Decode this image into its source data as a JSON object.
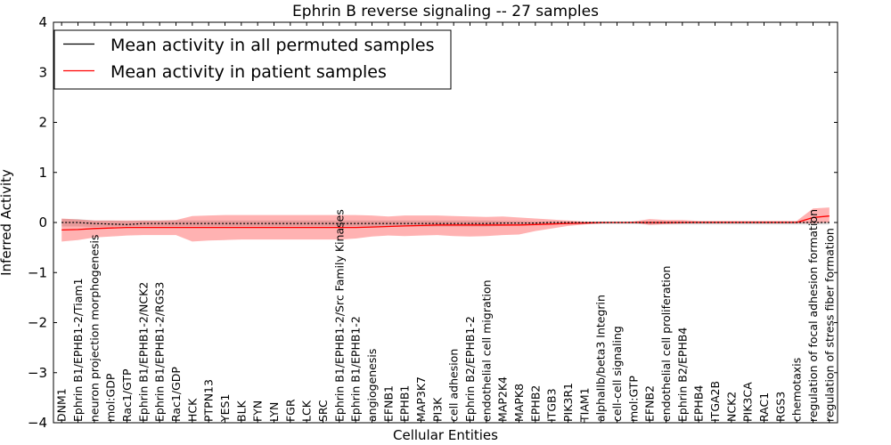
{
  "chart_data": {
    "type": "line",
    "title": "Ephrin B reverse signaling -- 27 samples",
    "xlabel": "Cellular Entities",
    "ylabel": "Inferred Activity",
    "ylim": [
      -4,
      4
    ],
    "yticks": [
      -4,
      -3,
      -2,
      -1,
      0,
      1,
      2,
      3,
      4
    ],
    "legend_position": "top-left",
    "categories": [
      "DNM1",
      "Ephrin B1/EPHB1-2/Tiam1",
      "neuron projection morphogenesis",
      "mol:GDP",
      "Rac1/GTP",
      "Ephrin B1/EPHB1-2/NCK2",
      "Ephrin B1/EPHB1-2/RGS3",
      "Rac1/GDP",
      "HCK",
      "PTPN13",
      "YES1",
      "BLK",
      "FYN",
      "LYN",
      "FGR",
      "LCK",
      "SRC",
      "Ephrin B1/EPHB1-2/Src Family Kinases",
      "Ephrin B1/EPHB1-2",
      "angiogenesis",
      "EFNB1",
      "EPHB1",
      "MAP3K7",
      "PI3K",
      "cell adhesion",
      "Ephrin B2/EPHB1-2",
      "endothelial cell migration",
      "MAP2K4",
      "MAPK8",
      "EPHB2",
      "ITGB3",
      "PIK3R1",
      "TIAM1",
      "alphaIIb/beta3 Integrin",
      "cell-cell signaling",
      "mol:GTP",
      "EFNB2",
      "endothelial cell proliferation",
      "Ephrin B2/EPHB4",
      "EPHB4",
      "ITGA2B",
      "NCK2",
      "PIK3CA",
      "RAC1",
      "RGS3",
      "chemotaxis",
      "regulation of focal adhesion formation",
      "regulation of stress fiber formation"
    ],
    "series": [
      {
        "name": "Mean activity in all permuted samples",
        "color": "#000000",
        "style": "dashed",
        "values": [
          0.0,
          0.0,
          -0.02,
          -0.03,
          -0.04,
          -0.02,
          -0.02,
          -0.02,
          -0.02,
          -0.02,
          -0.02,
          -0.02,
          -0.02,
          -0.02,
          -0.02,
          -0.02,
          -0.02,
          -0.02,
          -0.02,
          -0.02,
          -0.02,
          -0.02,
          -0.02,
          -0.02,
          -0.02,
          -0.02,
          -0.02,
          -0.01,
          -0.01,
          -0.01,
          0.0,
          0.0,
          0.0,
          0.0,
          0.0,
          0.0,
          0.0,
          0.0,
          0.0,
          0.0,
          0.0,
          0.0,
          0.0,
          0.0,
          0.0,
          0.0,
          0.0,
          0.0
        ],
        "lower": [
          -0.08,
          -0.08,
          -0.09,
          -0.08,
          -0.08,
          -0.08,
          -0.08,
          -0.08,
          -0.08,
          -0.08,
          -0.08,
          -0.08,
          -0.08,
          -0.08,
          -0.08,
          -0.08,
          -0.08,
          -0.08,
          -0.08,
          -0.08,
          -0.08,
          -0.08,
          -0.08,
          -0.08,
          -0.08,
          -0.08,
          -0.08,
          -0.07,
          -0.06,
          -0.05,
          -0.04,
          -0.03,
          -0.03,
          -0.03,
          -0.03,
          -0.03,
          -0.04,
          -0.04,
          -0.04,
          -0.04,
          -0.04,
          -0.04,
          -0.04,
          -0.04,
          -0.04,
          -0.04,
          -0.04,
          -0.04
        ],
        "upper": [
          0.07,
          0.07,
          0.04,
          0.04,
          0.03,
          0.04,
          0.04,
          0.04,
          0.04,
          0.04,
          0.04,
          0.04,
          0.04,
          0.04,
          0.04,
          0.04,
          0.04,
          0.04,
          0.04,
          0.04,
          0.04,
          0.04,
          0.04,
          0.04,
          0.04,
          0.04,
          0.04,
          0.03,
          0.03,
          0.02,
          0.02,
          0.02,
          0.02,
          0.02,
          0.02,
          0.02,
          0.02,
          0.02,
          0.02,
          0.02,
          0.02,
          0.02,
          0.02,
          0.02,
          0.02,
          0.02,
          0.02,
          0.02
        ]
      },
      {
        "name": "Mean activity in patient samples",
        "color": "#ff0000",
        "style": "solid",
        "values": [
          -0.15,
          -0.14,
          -0.12,
          -0.11,
          -0.1,
          -0.1,
          -0.1,
          -0.1,
          -0.1,
          -0.1,
          -0.1,
          -0.1,
          -0.1,
          -0.1,
          -0.1,
          -0.1,
          -0.1,
          -0.1,
          -0.1,
          -0.09,
          -0.08,
          -0.07,
          -0.06,
          -0.05,
          -0.05,
          -0.05,
          -0.05,
          -0.05,
          -0.05,
          -0.04,
          -0.03,
          -0.02,
          -0.01,
          0.0,
          0.0,
          0.0,
          0.0,
          0.0,
          0.0,
          0.0,
          0.0,
          0.0,
          0.0,
          0.0,
          0.0,
          0.0,
          0.1,
          0.13
        ],
        "lower": [
          -0.38,
          -0.35,
          -0.3,
          -0.28,
          -0.26,
          -0.25,
          -0.25,
          -0.25,
          -0.38,
          -0.36,
          -0.35,
          -0.34,
          -0.34,
          -0.34,
          -0.34,
          -0.34,
          -0.34,
          -0.34,
          -0.32,
          -0.28,
          -0.26,
          -0.27,
          -0.26,
          -0.25,
          -0.27,
          -0.28,
          -0.27,
          -0.25,
          -0.24,
          -0.17,
          -0.12,
          -0.07,
          -0.04,
          -0.02,
          0.0,
          0.0,
          -0.05,
          -0.03,
          -0.02,
          -0.01,
          -0.01,
          -0.01,
          -0.01,
          -0.01,
          -0.01,
          -0.01,
          -0.02,
          0.0
        ],
        "upper": [
          0.08,
          0.06,
          0.04,
          0.04,
          0.04,
          0.04,
          0.04,
          0.05,
          0.13,
          0.14,
          0.15,
          0.15,
          0.15,
          0.15,
          0.15,
          0.15,
          0.15,
          0.15,
          0.15,
          0.14,
          0.12,
          0.14,
          0.14,
          0.14,
          0.13,
          0.12,
          0.11,
          0.12,
          0.1,
          0.08,
          0.06,
          0.04,
          0.02,
          0.01,
          0.0,
          0.02,
          0.07,
          0.05,
          0.05,
          0.03,
          0.03,
          0.03,
          0.03,
          0.03,
          0.03,
          0.03,
          0.28,
          0.3
        ]
      }
    ]
  }
}
